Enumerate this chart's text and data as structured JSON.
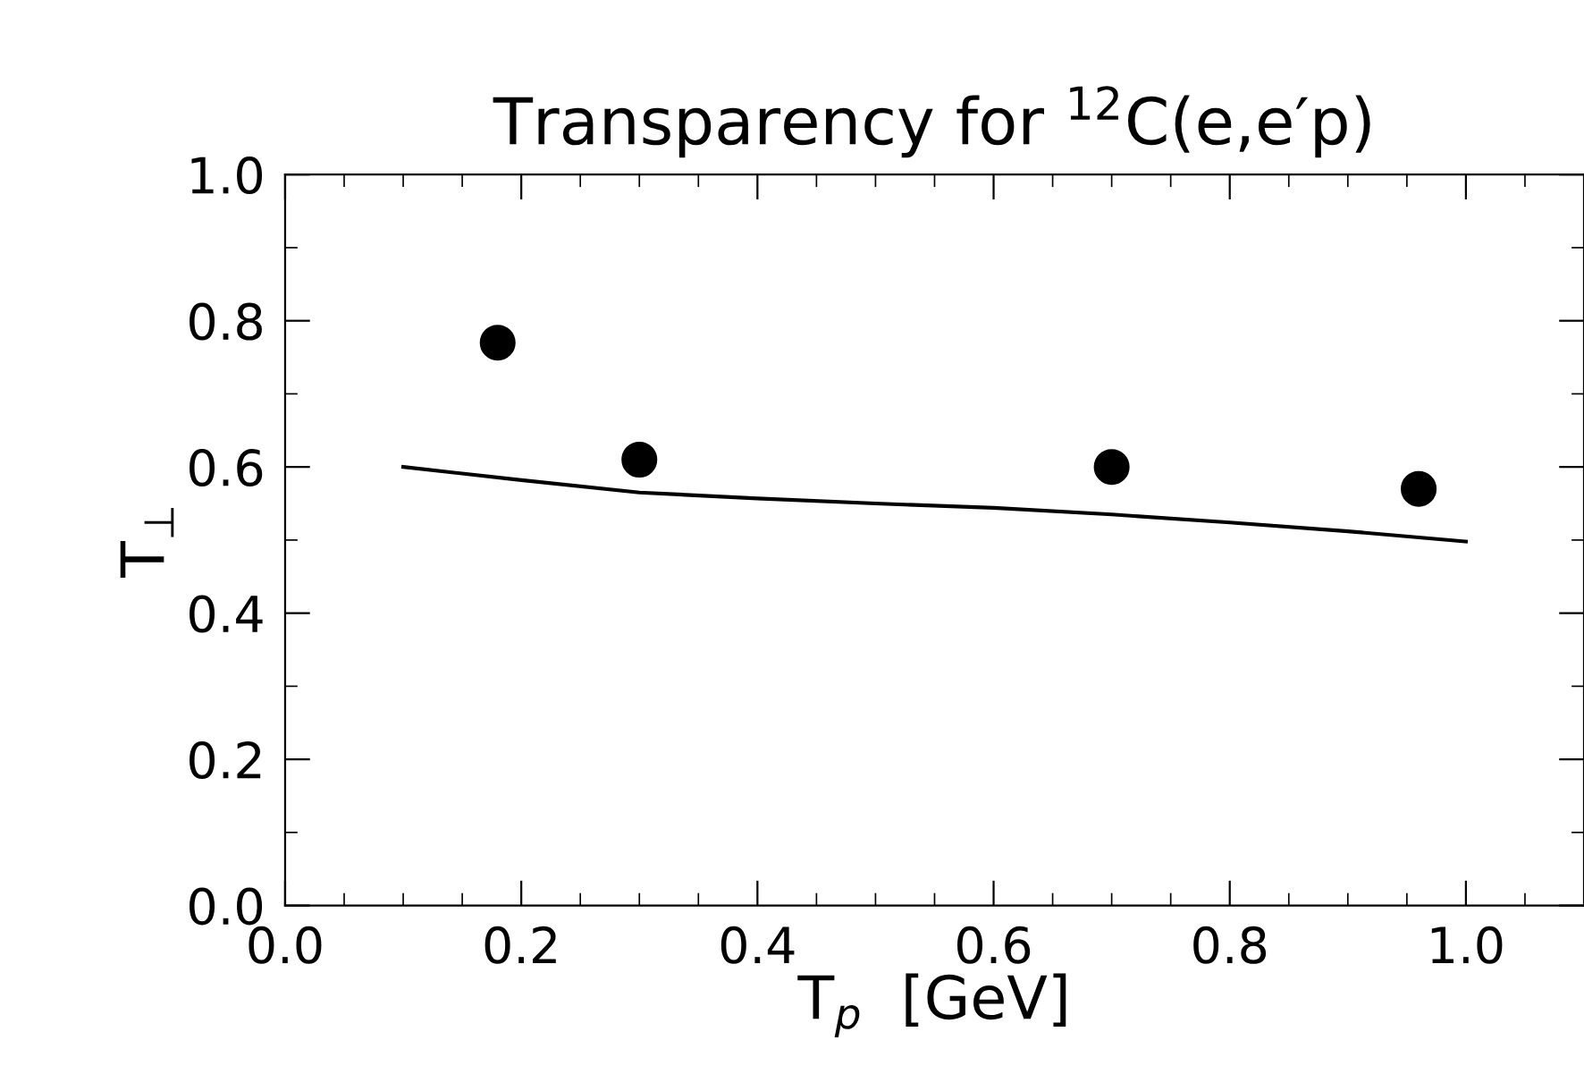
{
  "chart_data": {
    "type": "scatter",
    "title": "Transparency for $^{12}$C(e,e′p)",
    "xlabel": "T$_{p}$  [GeV]",
    "ylabel": "T$_{⊥}$",
    "xlim": [
      0,
      1.1
    ],
    "ylim": [
      0,
      1.0
    ],
    "xticks": [
      {
        "value": 0,
        "label": "0.0"
      },
      0.2,
      0.4,
      0.6,
      0.8,
      {
        "value": 1.0,
        "label": "1.0"
      }
    ],
    "yticks": [
      {
        "value": 0,
        "label": "0.0"
      },
      0.2,
      0.4,
      0.6,
      0.8,
      {
        "value": 1.0,
        "label": "1.0"
      }
    ],
    "grid": false,
    "legend": false,
    "marker": "circle",
    "series": [
      {
        "color": "#000000",
        "x": [
          0.18,
          0.3,
          0.7,
          0.96
        ],
        "values": [
          0.77,
          0.61,
          0.6,
          0.57
        ]
      },
      {
        "type": "line",
        "color": "#000000",
        "line_style": "solid",
        "marker": "none",
        "x": [
          0.1,
          0.2,
          0.3,
          0.4,
          0.5,
          0.6,
          0.7,
          0.8,
          0.9,
          1.0
        ],
        "values": [
          0.6,
          0.582,
          0.565,
          0.557,
          0.55,
          0.544,
          0.535,
          0.524,
          0.512,
          0.498
        ]
      }
    ]
  }
}
